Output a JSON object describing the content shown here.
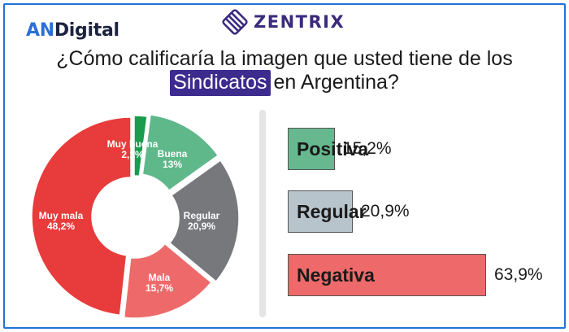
{
  "logos": {
    "an": "AN",
    "digital": "Digital",
    "zentrix": "ZENTRIX"
  },
  "title": {
    "line1": "¿Cómo calificaría la imagen que usted tiene de los",
    "highlight": "Sindicatos",
    "line2_rest": "en Argentina?"
  },
  "chart_data": [
    {
      "type": "pie",
      "categories": [
        "Muy buena",
        "Buena",
        "Regular",
        "Mala",
        "Muy mala"
      ],
      "values": [
        2.1,
        13,
        20.9,
        15.7,
        48.2
      ],
      "value_labels": [
        "2,1%",
        "13%",
        "20,9%",
        "15,7%",
        "48,2%"
      ],
      "colors": [
        "#1a9b4e",
        "#5fb88a",
        "#77787c",
        "#ee6a6a",
        "#e83b3b"
      ],
      "donut": true
    },
    {
      "type": "bar",
      "orientation": "horizontal",
      "categories": [
        "Positiva",
        "Regular",
        "Negativa"
      ],
      "values": [
        15.2,
        20.9,
        63.9
      ],
      "value_labels": [
        "15,2%",
        "20,9%",
        "63,9%"
      ],
      "colors": [
        "#67b88f",
        "#b8c4cc",
        "#ee6a6a"
      ]
    }
  ]
}
